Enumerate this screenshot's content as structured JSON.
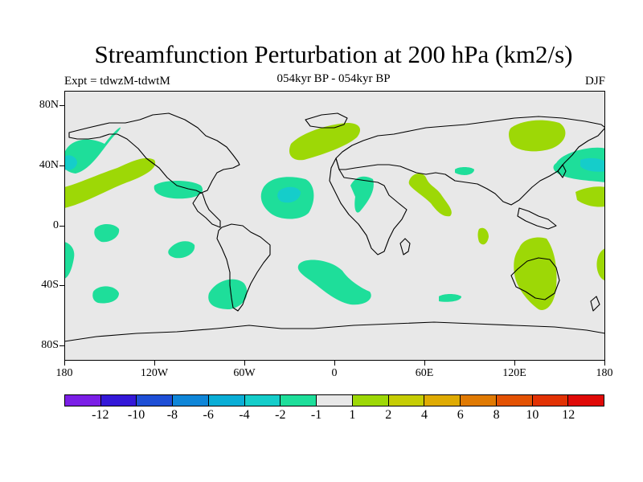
{
  "title": "Streamfunction Perturbation at 200 hPa (km2/s)",
  "subtitle_left": "Expt = tdwzM-tdwtM",
  "subtitle_center": "054kyr BP - 054kyr BP",
  "subtitle_right": "DJF",
  "lat_labels": [
    "80N",
    "40N",
    "0",
    "40S",
    "80S"
  ],
  "lon_labels": [
    "180",
    "120W",
    "60W",
    "0",
    "60E",
    "120E",
    "180"
  ],
  "colorbar": {
    "colors": [
      "#7b1fe6",
      "#3418d8",
      "#1e4fd6",
      "#0f86d8",
      "#0aaed6",
      "#15cdca",
      "#1ede9a",
      "#e8e8e8",
      "#9dd806",
      "#c6cd04",
      "#dfab03",
      "#e07a03",
      "#e35203",
      "#e23204",
      "#e00a08"
    ],
    "labels": [
      "-12",
      "-10",
      "-8",
      "-6",
      "-4",
      "-2",
      "-1",
      "1",
      "2",
      "4",
      "6",
      "8",
      "10",
      "12"
    ]
  },
  "map": {
    "projection": "cylindrical equidistant",
    "extent": {
      "lon": [
        -180,
        180
      ],
      "lat": [
        -90,
        90
      ]
    },
    "background_color": "#e8e8e8",
    "negative_fill_color": "#1ede9a",
    "positive_fill_color": "#9dd806"
  }
}
